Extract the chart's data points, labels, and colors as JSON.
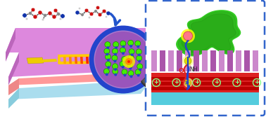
{
  "bg_color": "#ffffff",
  "device_top_color": "#dd88dd",
  "device_top_dark": "#cc66cc",
  "device_mid_color": "#ff9999",
  "device_bot_color": "#aaddee",
  "device_side_purple": "#bb66bb",
  "device_side_pink": "#ee8888",
  "device_side_cyan": "#88ccdd",
  "electrode_yellow": "#eecc00",
  "mag_ring_color": "#2244cc",
  "mag_fill_color": "#aa77cc",
  "mag_inner_color": "#9955bb",
  "green_dot": "#44ee00",
  "green_dot_edge": "#228800",
  "blue_dot": "#2244cc",
  "hot_yellow": "#ffee00",
  "hot_orange": "#ff6600",
  "handle_dark": "#333333",
  "handle_light": "#555555",
  "inset_bg": "#ffffff",
  "inset_border": "#3366cc",
  "inset_green_blob": "#33cc22",
  "inset_green_dark": "#228811",
  "pink_ball": "#ff7788",
  "yellow_glow": "#ffff00",
  "blue_link": "#2244cc",
  "red_link": "#dd2222",
  "purple_stripe1": "#cc88cc",
  "purple_stripe2": "#aa55aa",
  "red_layer": "#dd2222",
  "red_stripe": "#bb0000",
  "cyan_layer": "#55ccdd",
  "arrow_blue": "#2255cc",
  "mol_blue": "#1133aa",
  "mol_red": "#cc1111",
  "mol_gray": "#888888",
  "mol_white": "#cccccc",
  "mol_dark": "#444444"
}
